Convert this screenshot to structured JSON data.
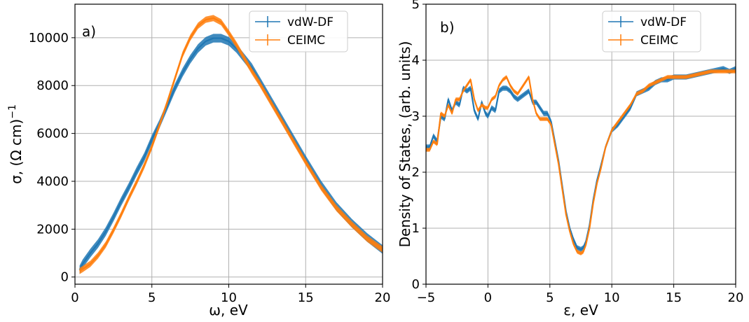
{
  "colors": {
    "vdw": "#1f77b4",
    "ceimc": "#ff7f0e",
    "grid": "#b0b0b0"
  },
  "chart_data": [
    {
      "type": "line",
      "panel_label": "a)",
      "xlabel": "ω, eV",
      "ylabel_text": "σ, (Ω cm)",
      "ylabel_sup": "−1",
      "xlim": [
        0,
        20
      ],
      "ylim": [
        -300,
        11400
      ],
      "xticks": [
        0,
        5,
        10,
        15,
        20
      ],
      "yticks": [
        0,
        2000,
        4000,
        6000,
        8000,
        10000
      ],
      "xtick_labels": [
        "0",
        "5",
        "10",
        "15",
        "20"
      ],
      "ytick_labels": [
        "0",
        "2000",
        "4000",
        "6000",
        "8000",
        "10000"
      ],
      "grid": true,
      "legend": "top-right",
      "series": [
        {
          "name": "vdW-DF",
          "x": [
            0.3,
            0.5,
            1,
            1.5,
            2,
            2.5,
            3,
            3.5,
            4,
            4.5,
            5,
            5.5,
            6,
            6.5,
            7,
            7.5,
            8,
            8.5,
            9,
            9.5,
            10,
            10.5,
            11,
            11.5,
            12,
            12.5,
            13,
            13.5,
            14,
            14.5,
            15,
            16,
            17,
            18,
            19,
            20
          ],
          "y": [
            300,
            550,
            1000,
            1400,
            1900,
            2500,
            3150,
            3750,
            4400,
            5000,
            5750,
            6400,
            7150,
            7900,
            8550,
            9100,
            9550,
            9850,
            9980,
            9980,
            9850,
            9550,
            9150,
            8750,
            8200,
            7650,
            7100,
            6550,
            6000,
            5450,
            4900,
            3850,
            2950,
            2250,
            1650,
            1150
          ],
          "band": 180
        },
        {
          "name": "CEIMC",
          "x": [
            0.3,
            0.5,
            1,
            1.5,
            2,
            2.5,
            3,
            3.5,
            4,
            4.5,
            5,
            5.5,
            6,
            6.5,
            7,
            7.5,
            8,
            8.5,
            9,
            9.5,
            10,
            10.5,
            11,
            11.5,
            12,
            12.5,
            13,
            13.5,
            14,
            14.5,
            15,
            16,
            17,
            18,
            19,
            20
          ],
          "y": [
            250,
            330,
            550,
            900,
            1350,
            1950,
            2600,
            3300,
            3950,
            4650,
            5450,
            6350,
            7300,
            8300,
            9300,
            10000,
            10500,
            10750,
            10820,
            10650,
            10200,
            9700,
            9150,
            8600,
            8100,
            7550,
            7000,
            6450,
            5900,
            5350,
            4800,
            3750,
            2880,
            2200,
            1600,
            1150
          ],
          "band": 130
        }
      ]
    },
    {
      "type": "line",
      "panel_label": "b)",
      "xlabel": "ε, eV",
      "ylabel": "Density of States, (arb. units)",
      "xlim": [
        -5,
        20
      ],
      "ylim": [
        0,
        5
      ],
      "xticks": [
        -5,
        0,
        5,
        10,
        15,
        20
      ],
      "yticks": [
        0,
        1,
        2,
        3,
        4,
        5
      ],
      "xtick_labels": [
        "−5",
        "0",
        "5",
        "10",
        "15",
        "20"
      ],
      "ytick_labels": [
        "0",
        "1",
        "2",
        "3",
        "4",
        "5"
      ],
      "grid": true,
      "legend": "top-right",
      "series": [
        {
          "name": "vdW-DF",
          "x": [
            -5,
            -4.7,
            -4.4,
            -4.1,
            -3.8,
            -3.5,
            -3.2,
            -2.9,
            -2.6,
            -2.3,
            -2,
            -1.7,
            -1.4,
            -1.1,
            -0.8,
            -0.5,
            -0.2,
            0,
            0.3,
            0.6,
            0.9,
            1.2,
            1.5,
            1.8,
            2.1,
            2.4,
            2.7,
            3,
            3.3,
            3.6,
            3.9,
            4.2,
            4.5,
            4.8,
            5.1,
            5.4,
            5.7,
            6,
            6.3,
            6.6,
            6.9,
            7.2,
            7.5,
            7.7,
            7.9,
            8.2,
            8.5,
            8.8,
            9.1,
            9.5,
            10,
            10.5,
            11,
            11.5,
            12,
            12.5,
            13,
            13.5,
            14,
            14.5,
            15,
            16,
            17,
            18,
            19,
            19.5,
            20
          ],
          "y": [
            2.45,
            2.45,
            2.65,
            2.55,
            3.0,
            2.95,
            3.3,
            3.1,
            3.25,
            3.2,
            3.5,
            3.45,
            3.5,
            3.1,
            2.95,
            3.25,
            3.05,
            3.0,
            3.15,
            3.1,
            3.45,
            3.5,
            3.5,
            3.45,
            3.35,
            3.3,
            3.35,
            3.4,
            3.45,
            3.25,
            3.25,
            3.15,
            3.05,
            3.05,
            2.9,
            2.55,
            2.2,
            1.75,
            1.3,
            1.0,
            0.8,
            0.65,
            0.62,
            0.65,
            0.75,
            1.05,
            1.5,
            1.85,
            2.1,
            2.45,
            2.75,
            2.85,
            3.0,
            3.15,
            3.4,
            3.45,
            3.5,
            3.6,
            3.65,
            3.65,
            3.7,
            3.7,
            3.75,
            3.8,
            3.85,
            3.8,
            3.85
          ],
          "band": 0.045
        },
        {
          "name": "CEIMC",
          "x": [
            -5,
            -4.7,
            -4.4,
            -4.1,
            -3.8,
            -3.5,
            -3.2,
            -2.9,
            -2.6,
            -2.3,
            -2,
            -1.7,
            -1.4,
            -1.1,
            -0.8,
            -0.5,
            -0.2,
            0,
            0.3,
            0.6,
            0.9,
            1.2,
            1.5,
            1.8,
            2.1,
            2.4,
            2.7,
            3,
            3.3,
            3.6,
            3.9,
            4.2,
            4.5,
            4.8,
            5.1,
            5.4,
            5.7,
            6,
            6.3,
            6.6,
            6.9,
            7.2,
            7.5,
            7.7,
            7.9,
            8.2,
            8.5,
            8.8,
            9.1,
            9.5,
            10,
            10.5,
            11,
            11.5,
            12,
            12.5,
            13,
            13.5,
            14,
            14.5,
            15,
            16,
            17,
            18,
            19,
            19.5,
            20
          ],
          "y": [
            2.4,
            2.4,
            2.55,
            2.5,
            3.05,
            3.0,
            3.2,
            3.05,
            3.3,
            3.3,
            3.45,
            3.55,
            3.65,
            3.3,
            3.1,
            3.2,
            3.15,
            3.15,
            3.3,
            3.35,
            3.55,
            3.65,
            3.7,
            3.55,
            3.45,
            3.4,
            3.5,
            3.6,
            3.7,
            3.3,
            3.05,
            2.95,
            2.95,
            2.95,
            2.85,
            2.5,
            2.15,
            1.7,
            1.25,
            0.95,
            0.72,
            0.58,
            0.55,
            0.58,
            0.7,
            1.0,
            1.45,
            1.8,
            2.05,
            2.45,
            2.75,
            2.9,
            3.05,
            3.2,
            3.4,
            3.45,
            3.55,
            3.6,
            3.65,
            3.7,
            3.7,
            3.7,
            3.75,
            3.8,
            3.8,
            3.8,
            3.8
          ],
          "band": 0.035
        }
      ]
    }
  ]
}
